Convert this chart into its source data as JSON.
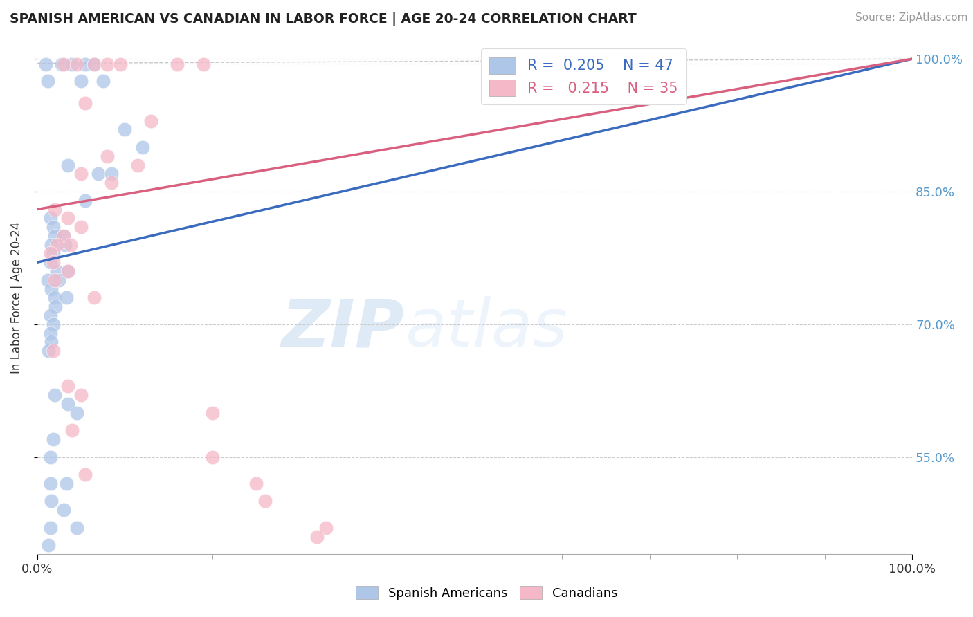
{
  "title": "SPANISH AMERICAN VS CANADIAN IN LABOR FORCE | AGE 20-24 CORRELATION CHART",
  "source": "Source: ZipAtlas.com",
  "ylabel": "In Labor Force | Age 20-24",
  "xlim": [
    0,
    100
  ],
  "ylim": [
    44,
    102
  ],
  "ytick_values": [
    55,
    70,
    85,
    100
  ],
  "blue_R": 0.205,
  "blue_N": 47,
  "pink_R": 0.215,
  "pink_N": 35,
  "blue_color": "#aec6e8",
  "pink_color": "#f4b8c8",
  "blue_line_color": "#3a6bbf",
  "pink_line_color": "#d95f7f",
  "blue_line": [
    [
      0,
      77
    ],
    [
      100,
      100
    ]
  ],
  "pink_line": [
    [
      0,
      83
    ],
    [
      100,
      100
    ]
  ],
  "background_color": "#ffffff",
  "grid_color": "#cccccc",
  "watermark_zip": "ZIP",
  "watermark_atlas": "atlas",
  "blue_x": [
    1.0,
    1.2,
    2.8,
    4.0,
    5.5,
    6.5,
    7.5,
    5.0,
    10.0,
    12.0,
    3.5,
    7.0,
    8.5,
    5.5,
    1.5,
    1.8,
    2.0,
    3.0,
    1.6,
    3.2,
    1.8,
    1.5,
    2.2,
    3.5,
    1.2,
    2.5,
    1.6,
    2.0,
    3.3,
    2.1,
    1.5,
    1.8,
    1.5,
    1.6,
    1.3,
    2.0,
    3.5,
    4.5,
    1.8,
    1.5,
    1.5,
    3.3,
    1.6,
    3.0,
    1.5,
    4.5,
    1.3
  ],
  "blue_y": [
    99.4,
    97.5,
    99.4,
    99.4,
    99.4,
    99.4,
    97.5,
    97.5,
    92,
    90,
    88,
    87,
    87,
    84,
    82,
    81,
    80,
    80,
    79,
    79,
    78,
    77,
    76,
    76,
    75,
    75,
    74,
    73,
    73,
    72,
    71,
    70,
    69,
    68,
    67,
    62,
    61,
    60,
    57,
    55,
    52,
    52,
    50,
    49,
    47,
    47,
    45
  ],
  "pink_x": [
    3.0,
    4.5,
    6.5,
    8.0,
    9.5,
    16.0,
    19.0,
    5.5,
    13.0,
    8.0,
    11.5,
    5.0,
    8.5,
    2.0,
    3.5,
    5.0,
    3.0,
    2.2,
    3.8,
    1.5,
    1.8,
    3.5,
    2.0,
    6.5,
    1.8,
    3.5,
    5.0,
    20.0,
    4.0,
    20.0,
    5.5,
    25.0,
    26.0,
    33.0,
    32.0
  ],
  "pink_y": [
    99.4,
    99.4,
    99.4,
    99.4,
    99.4,
    99.4,
    99.4,
    95,
    93,
    89,
    88,
    87,
    86,
    83,
    82,
    81,
    80,
    79,
    79,
    78,
    77,
    76,
    75,
    73,
    67,
    63,
    62,
    60,
    58,
    55,
    53,
    52,
    50,
    47,
    46
  ]
}
